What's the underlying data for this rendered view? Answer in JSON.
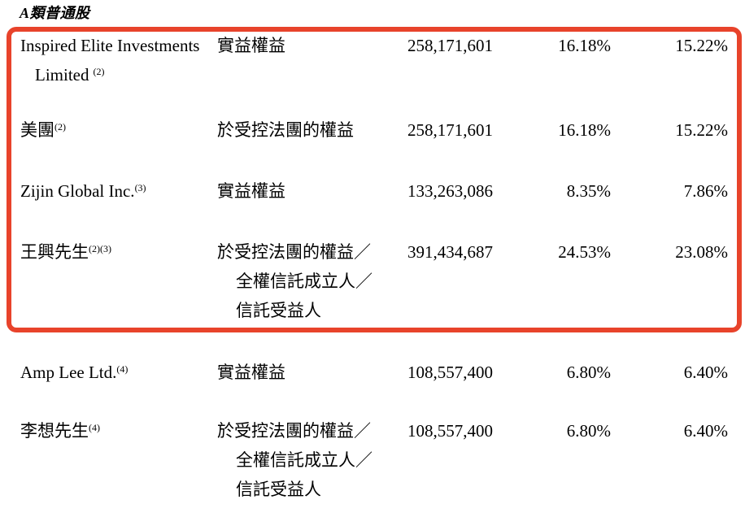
{
  "document": {
    "section_title": "A類普通股",
    "annotation": {
      "highlight_color": "#e8432b"
    },
    "table": {
      "rows": [
        {
          "name_line1": "Inspired Elite Investments",
          "name_line2": "Limited",
          "name_note": "(2)",
          "nature_line1": "實益權益",
          "shares": "258,171,601",
          "class_pct": "16.18%",
          "total_pct": "15.22%"
        },
        {
          "name_line1": "美團",
          "name_note": "(2)",
          "nature_line1": "於受控法團的權益",
          "shares": "258,171,601",
          "class_pct": "16.18%",
          "total_pct": "15.22%"
        },
        {
          "name_line1": "Zijin Global Inc.",
          "name_note": "(3)",
          "nature_line1": "實益權益",
          "shares": "133,263,086",
          "class_pct": "8.35%",
          "total_pct": "7.86%"
        },
        {
          "name_line1": "王興先生",
          "name_note": "(2)(3)",
          "nature_line1": "於受控法團的權益／",
          "nature_line2": "全權信託成立人／",
          "nature_line3": "信託受益人",
          "shares": "391,434,687",
          "class_pct": "24.53%",
          "total_pct": "23.08%"
        },
        {
          "name_line1": "Amp Lee Ltd.",
          "name_note": "(4)",
          "nature_line1": "實益權益",
          "shares": "108,557,400",
          "class_pct": "6.80%",
          "total_pct": "6.40%"
        },
        {
          "name_line1": "李想先生",
          "name_note": "(4)",
          "nature_line1": "於受控法團的權益／",
          "nature_line2": "全權信託成立人／",
          "nature_line3": "信託受益人",
          "shares": "108,557,400",
          "class_pct": "6.80%",
          "total_pct": "6.40%"
        }
      ]
    }
  }
}
